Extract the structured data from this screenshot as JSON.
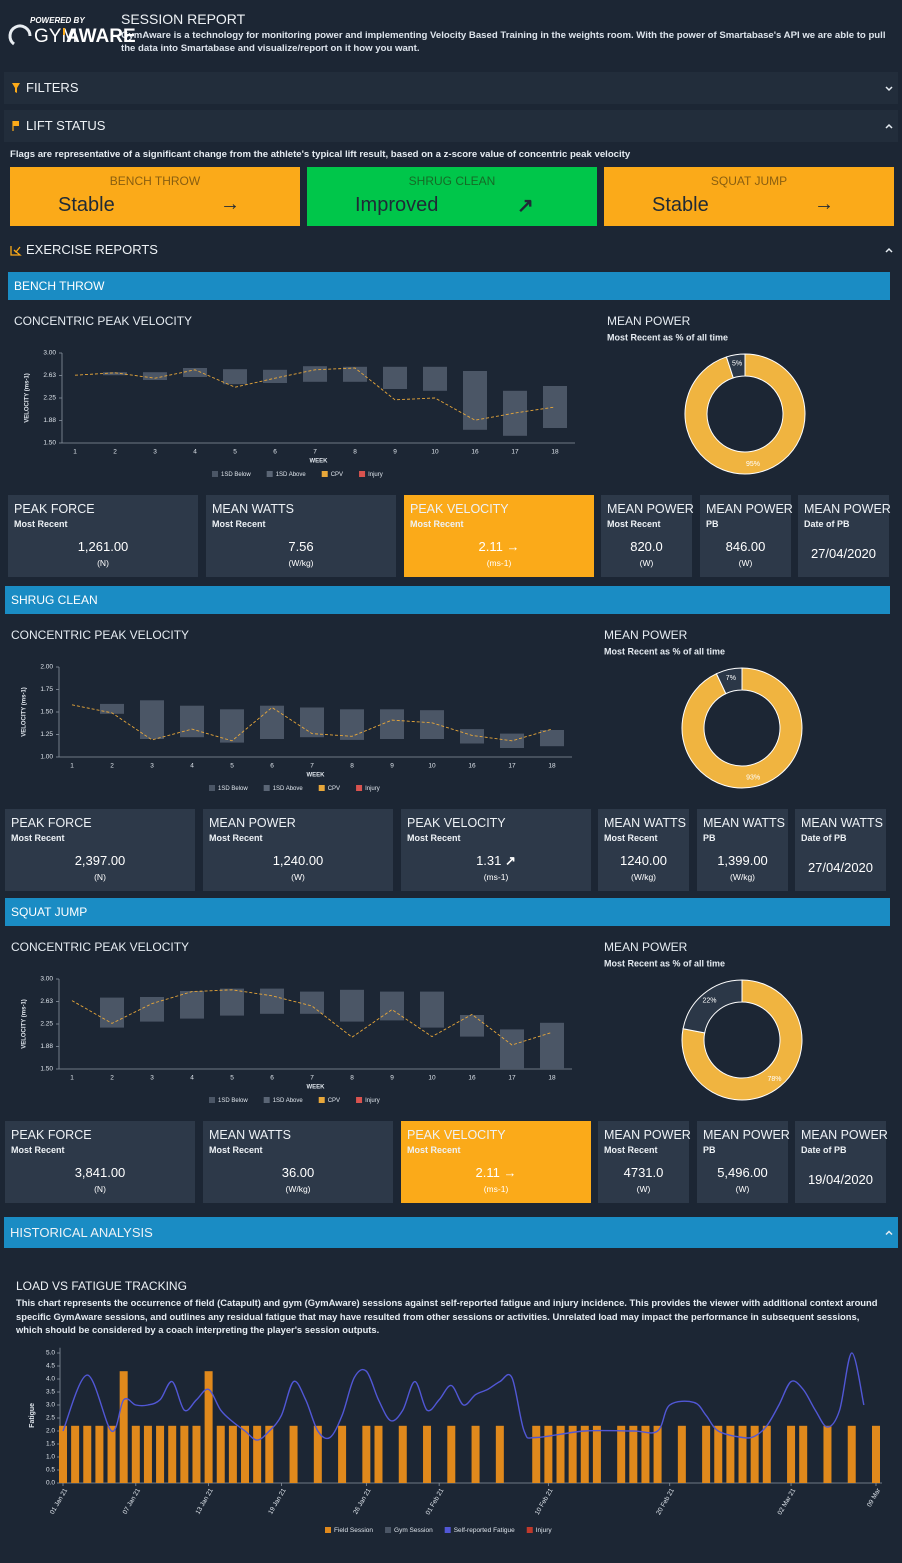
{
  "header": {
    "powered_by": "POWERED BY",
    "brand_a": "GYM",
    "brand_b": "AWARE",
    "title": "SESSION REPORT",
    "description": "GymAware is a technology for monitoring power and implementing Velocity Based Training in the weights room. With the power of Smartabase's API we are able to pull the data into Smartabase and visualize/report on it how you want."
  },
  "filters": {
    "title": "FILTERS"
  },
  "lift_status": {
    "title": "LIFT STATUS",
    "note": "Flags are representative of a significant change from the athlete's typical lift result, based on a z-score value of concentric peak velocity",
    "cards": [
      {
        "exercise": "BENCH THROW",
        "status": "Stable",
        "icon": "→",
        "color": "#fbaa19"
      },
      {
        "exercise": "SHRUG CLEAN",
        "status": "Improved",
        "icon": "↗",
        "color": "#00c64a"
      },
      {
        "exercise": "SQUAT JUMP",
        "status": "Stable",
        "icon": "→",
        "color": "#fbaa19"
      }
    ]
  },
  "exercise_reports": {
    "title": "EXERCISE REPORTS",
    "sections": [
      {
        "name": "BENCH THROW",
        "chart_data": {
          "type": "floating_bar",
          "title": "CONCENTRIC PEAK VELOCITY",
          "x_label": "WEEK",
          "y_label": "VELOCITY (ms-1)",
          "categories": [
            "1",
            "2",
            "3",
            "4",
            "5",
            "6",
            "7",
            "8",
            "9",
            "10",
            "16",
            "17",
            "18"
          ],
          "ylim": [
            1.5,
            3.0
          ],
          "yticks": [
            {
              "value": 1.5,
              "label": "1.50"
            },
            {
              "value": 1.875,
              "label": "1.88"
            },
            2.25,
            {
              "value": 2.625,
              "label": "2.63"
            },
            {
              "value": 3.0,
              "label": "3.00"
            }
          ],
          "series": [
            {
              "name": "1SD Below",
              "color": "#4b5666",
              "values": [
                null,
                2.63,
                2.55,
                2.6,
                2.48,
                2.5,
                2.52,
                2.52,
                2.4,
                2.37,
                1.72,
                1.62,
                1.75
              ]
            },
            {
              "name": "1SD Above",
              "color": "#5a6575",
              "values": [
                null,
                2.68,
                2.68,
                2.75,
                2.73,
                2.72,
                2.78,
                2.77,
                2.77,
                2.77,
                2.7,
                2.37,
                2.45
              ]
            },
            {
              "name": "CPV",
              "color": "#e8a73a",
              "values": [
                2.63,
                2.67,
                2.58,
                2.72,
                2.43,
                2.58,
                2.72,
                2.75,
                2.22,
                2.25,
                1.88,
                2.0,
                2.1
              ]
            },
            {
              "name": "Injury",
              "color": "#d9534f"
            }
          ]
        },
        "donut": {
          "type": "donut",
          "title": "MEAN POWER",
          "subtitle": "Most Recent as % of all time",
          "values": [
            95,
            5
          ],
          "value_labels": [
            "95%",
            "5%"
          ],
          "colors": [
            "#f0b440",
            "#2b3747"
          ]
        },
        "stats": [
          {
            "label": "PEAK FORCE",
            "sub": "Most Recent",
            "value": "1,261.00",
            "unit": "(N)"
          },
          {
            "label": "MEAN WATTS",
            "sub": "Most Recent",
            "value": "7.56",
            "unit": "(W/kg)"
          },
          {
            "label": "PEAK VELOCITY",
            "sub": "Most Recent",
            "value": "2.11",
            "icon": "→",
            "unit": "(ms-1)",
            "color": "#fbaa19"
          },
          {
            "label": "MEAN POWER",
            "sub": "Most Recent",
            "value": "820.0",
            "unit": "(W)"
          },
          {
            "label": "MEAN POWER",
            "sub": "PB",
            "value": "846.00",
            "unit": "(W)"
          },
          {
            "label": "MEAN POWER",
            "sub": "Date of PB",
            "value": "27/04/2020"
          }
        ]
      },
      {
        "name": "SHRUG CLEAN",
        "chart_data": {
          "type": "floating_bar",
          "title": "CONCENTRIC PEAK VELOCITY",
          "x_label": "WEEK",
          "y_label": "VELOCITY (ms-1)",
          "categories": [
            "1",
            "2",
            "3",
            "4",
            "5",
            "6",
            "7",
            "8",
            "9",
            "10",
            "16",
            "17",
            "18"
          ],
          "ylim": [
            1.0,
            2.0
          ],
          "yticks": [
            {
              "value": 1.0,
              "label": "1.00"
            },
            1.25,
            {
              "value": 1.5,
              "label": "1.50"
            },
            1.75,
            {
              "value": 2.0,
              "label": "2.00"
            }
          ],
          "series": [
            {
              "name": "1SD Below",
              "color": "#4b5666",
              "values": [
                null,
                1.48,
                1.2,
                1.22,
                1.16,
                1.2,
                1.22,
                1.19,
                1.2,
                1.2,
                1.15,
                1.1,
                1.12
              ]
            },
            {
              "name": "1SD Above",
              "color": "#5a6575",
              "values": [
                null,
                1.59,
                1.63,
                1.57,
                1.53,
                1.57,
                1.55,
                1.53,
                1.53,
                1.52,
                1.31,
                1.26,
                1.3
              ]
            },
            {
              "name": "CPV",
              "color": "#e8a73a",
              "values": [
                1.58,
                1.49,
                1.19,
                1.31,
                1.18,
                1.55,
                1.26,
                1.23,
                1.41,
                1.38,
                1.24,
                1.18,
                1.31
              ]
            },
            {
              "name": "Injury",
              "color": "#d9534f"
            }
          ]
        },
        "donut": {
          "type": "donut",
          "title": "MEAN POWER",
          "subtitle": "Most Recent as % of all time",
          "values": [
            93,
            7
          ],
          "value_labels": [
            "93%",
            "7%"
          ],
          "colors": [
            "#f0b440",
            "#2b3747"
          ]
        },
        "stats": [
          {
            "label": "PEAK FORCE",
            "sub": "Most Recent",
            "value": "2,397.00",
            "unit": "(N)"
          },
          {
            "label": "MEAN POWER",
            "sub": "Most Recent",
            "value": "1,240.00",
            "unit": "(W)"
          },
          {
            "label": "PEAK VELOCITY",
            "sub": "Most Recent",
            "value": "1.31",
            "icon": "↗",
            "unit": "(ms-1)"
          },
          {
            "label": "MEAN WATTS",
            "sub": "Most Recent",
            "value": "1240.00",
            "unit": "(W/kg)"
          },
          {
            "label": "MEAN WATTS",
            "sub": "PB",
            "value": "1,399.00",
            "unit": "(W/kg)"
          },
          {
            "label": "MEAN WATTS",
            "sub": "Date of PB",
            "value": "27/04/2020"
          }
        ]
      },
      {
        "name": "SQUAT JUMP",
        "chart_data": {
          "type": "floating_bar",
          "title": "CONCENTRIC PEAK VELOCITY",
          "x_label": "WEEK",
          "y_label": "VELOCITY (ms-1)",
          "categories": [
            "1",
            "2",
            "3",
            "4",
            "5",
            "6",
            "7",
            "8",
            "9",
            "10",
            "16",
            "17",
            "18"
          ],
          "ylim": [
            1.5,
            3.0
          ],
          "yticks": [
            {
              "value": 1.5,
              "label": "1.50"
            },
            {
              "value": 1.875,
              "label": "1.88"
            },
            2.25,
            {
              "value": 2.625,
              "label": "2.63"
            },
            {
              "value": 3.0,
              "label": "3.00"
            }
          ],
          "series": [
            {
              "name": "1SD Below",
              "color": "#4b5666",
              "values": [
                null,
                2.19,
                2.29,
                2.34,
                2.39,
                2.42,
                2.42,
                2.29,
                2.31,
                2.19,
                2.04,
                1.5,
                1.5
              ]
            },
            {
              "name": "1SD Above",
              "color": "#5a6575",
              "values": [
                null,
                2.69,
                2.7,
                2.8,
                2.84,
                2.84,
                2.79,
                2.82,
                2.79,
                2.79,
                2.4,
                2.16,
                2.27
              ]
            },
            {
              "name": "CPV",
              "color": "#e8a73a",
              "values": [
                2.64,
                2.26,
                2.59,
                2.79,
                2.82,
                2.72,
                2.55,
                2.03,
                2.49,
                2.04,
                2.41,
                1.9,
                2.11
              ]
            },
            {
              "name": "Injury",
              "color": "#d9534f"
            }
          ]
        },
        "donut": {
          "type": "donut",
          "title": "MEAN POWER",
          "subtitle": "Most Recent as % of all time",
          "values": [
            78,
            22
          ],
          "value_labels": [
            "78%",
            "22%"
          ],
          "colors": [
            "#f0b440",
            "#2b3747"
          ]
        },
        "stats": [
          {
            "label": "PEAK FORCE",
            "sub": "Most Recent",
            "value": "3,841.00",
            "unit": "(N)"
          },
          {
            "label": "MEAN WATTS",
            "sub": "Most Recent",
            "value": "36.00",
            "unit": "(W/kg)"
          },
          {
            "label": "PEAK VELOCITY",
            "sub": "Most Recent",
            "value": "2.11",
            "icon": "→",
            "unit": "(ms-1)",
            "color": "#fbaa19"
          },
          {
            "label": "MEAN POWER",
            "sub": "Most Recent",
            "value": "4731.0",
            "unit": "(W)"
          },
          {
            "label": "MEAN POWER",
            "sub": "PB",
            "value": "5,496.00",
            "unit": "(W)"
          },
          {
            "label": "MEAN POWER",
            "sub": "Date of PB",
            "value": "19/04/2020"
          }
        ]
      }
    ]
  },
  "historical": {
    "title": "HISTORICAL ANALYSIS",
    "chart_data": {
      "type": "combo",
      "title": "LOAD VS FATIGUE TRACKING",
      "description": "This chart represents the occurrence of field (Catapult) and gym (GymAware) sessions against self-reported fatigue and injury incidence. This provides the viewer with additional context around specific GymAware sessions, and outlines any residual fatigue that may have resulted from other sessions or activities. Unrelated load may impact the performance in subsequent sessions, which should be considered by a coach interpreting the player's session outputs.",
      "y_label": "Fatigue",
      "xlim": [
        "2021-01-01",
        "2021-03-09"
      ],
      "xticks": [
        {
          "value": "2021-01-01",
          "label": "01 Jan 21"
        },
        {
          "value": "2021-01-07",
          "label": "07 Jan 21"
        },
        {
          "value": "2021-01-13",
          "label": "13 Jan 21"
        },
        {
          "value": "2021-01-19",
          "label": "19 Jan 21"
        },
        {
          "value": "2021-01-26",
          "label": "26 Jan 21"
        },
        {
          "value": "2021-02-01",
          "label": "01 Feb 21"
        },
        {
          "value": "2021-02-10",
          "label": "10 Feb 21"
        },
        {
          "value": "2021-02-20",
          "label": "20 Feb 21"
        },
        {
          "value": "2021-03-02",
          "label": "02 Mar 21"
        },
        {
          "value": "2021-03-09",
          "label": "09 Mar"
        }
      ],
      "ylim": [
        0,
        5.2
      ],
      "yticks": [
        {
          "value": 0,
          "label": "0.0"
        },
        0.5,
        {
          "value": 1,
          "label": "1.0"
        },
        1.5,
        {
          "value": 2,
          "label": "2.0"
        },
        2.5,
        {
          "value": 3,
          "label": "3.0"
        },
        3.5,
        {
          "value": 4,
          "label": "4.0"
        },
        4.5,
        {
          "value": 5,
          "label": "5.0"
        }
      ],
      "series": [
        {
          "name": "Field Session",
          "type": "bar",
          "color": "#e0891c",
          "x": [
            "2021-01-01",
            "2021-01-02",
            "2021-01-03",
            "2021-01-04",
            "2021-01-05",
            "2021-01-06",
            "2021-01-07",
            "2021-01-08",
            "2021-01-09",
            "2021-01-10",
            "2021-01-11",
            "2021-01-12",
            "2021-01-13",
            "2021-01-14",
            "2021-01-15",
            "2021-01-16",
            "2021-01-17",
            "2021-01-18",
            "2021-01-20",
            "2021-01-22",
            "2021-01-24",
            "2021-01-26",
            "2021-01-27",
            "2021-01-29",
            "2021-01-31",
            "2021-02-02",
            "2021-02-04",
            "2021-02-06",
            "2021-02-09",
            "2021-02-10",
            "2021-02-11",
            "2021-02-12",
            "2021-02-13",
            "2021-02-14",
            "2021-02-16",
            "2021-02-17",
            "2021-02-18",
            "2021-02-19",
            "2021-02-21",
            "2021-02-23",
            "2021-02-24",
            "2021-02-25",
            "2021-02-26",
            "2021-02-27",
            "2021-02-28",
            "2021-03-02",
            "2021-03-03",
            "2021-03-05",
            "2021-03-07",
            "2021-03-09"
          ],
          "values": [
            2.2,
            2.2,
            2.2,
            2.2,
            2.2,
            4.3,
            2.2,
            2.2,
            2.2,
            2.2,
            2.2,
            2.2,
            4.3,
            2.2,
            2.2,
            2.2,
            2.2,
            2.2,
            2.2,
            2.2,
            2.2,
            2.2,
            2.2,
            2.2,
            2.2,
            2.2,
            2.2,
            2.2,
            2.2,
            2.2,
            2.2,
            2.2,
            2.2,
            2.2,
            2.2,
            2.2,
            2.2,
            2.2,
            2.2,
            2.2,
            2.2,
            2.2,
            2.2,
            2.2,
            2.2,
            2.2,
            2.2,
            2.2,
            2.2,
            2.2
          ]
        },
        {
          "name": "Gym Session",
          "type": "bar",
          "color": "#4b5666"
        },
        {
          "name": "Self-reported Fatigue",
          "type": "line",
          "color": "#5157d6",
          "x": [
            "2021-01-01",
            "2021-01-03",
            "2021-01-05",
            "2021-01-06",
            "2021-01-07",
            "2021-01-08",
            "2021-01-09",
            "2021-01-10",
            "2021-01-11",
            "2021-01-12",
            "2021-01-13",
            "2021-01-14",
            "2021-01-15",
            "2021-01-16",
            "2021-01-17",
            "2021-01-18",
            "2021-01-19",
            "2021-01-20",
            "2021-01-21",
            "2021-01-22",
            "2021-01-23",
            "2021-01-24",
            "2021-01-25",
            "2021-01-26",
            "2021-01-27",
            "2021-01-28",
            "2021-01-29",
            "2021-01-30",
            "2021-01-31",
            "2021-02-01",
            "2021-02-02",
            "2021-02-03",
            "2021-02-04",
            "2021-02-05",
            "2021-02-06",
            "2021-02-07",
            "2021-02-08",
            "2021-02-09",
            "2021-02-13",
            "2021-02-17",
            "2021-02-19",
            "2021-02-20",
            "2021-02-22",
            "2021-02-23",
            "2021-02-24",
            "2021-02-26",
            "2021-02-27",
            "2021-02-28",
            "2021-03-01",
            "2021-03-02",
            "2021-03-03",
            "2021-03-04",
            "2021-03-05",
            "2021-03-06",
            "2021-03-07",
            "2021-03-08"
          ],
          "values": [
            2.0,
            4.15,
            2.0,
            3.2,
            3.0,
            3.0,
            3.2,
            3.9,
            2.8,
            3.2,
            3.6,
            2.8,
            2.35,
            2.0,
            1.65,
            2.0,
            2.6,
            3.9,
            3.2,
            2.0,
            1.75,
            2.6,
            4.05,
            4.3,
            3.2,
            2.4,
            2.8,
            3.9,
            2.8,
            3.2,
            3.75,
            3.0,
            3.4,
            3.6,
            3.9,
            4.05,
            2.0,
            1.75,
            2.0,
            2.0,
            2.0,
            3.0,
            3.1,
            2.6,
            2.0,
            1.75,
            1.8,
            2.2,
            3.0,
            3.9,
            3.6,
            2.8,
            2.15,
            2.8,
            5.0,
            3.0
          ]
        },
        {
          "name": "Injury",
          "type": "bar",
          "color": "#c0392b"
        }
      ]
    }
  }
}
